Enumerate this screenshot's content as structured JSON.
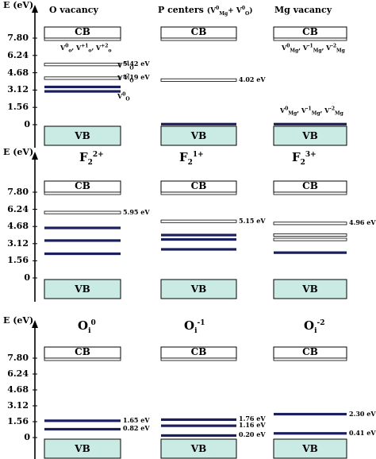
{
  "axis": {
    "ylabel": "E (eV)",
    "ticks": [
      "7.80",
      "6.24",
      "4.68",
      "3.12",
      "1.56",
      "0"
    ]
  },
  "band_labels": {
    "cb": "CB",
    "vb": "VB"
  },
  "panels": [
    {
      "columns": [
        {
          "title": {
            "base": "O vacancy"
          },
          "levels": [
            {
              "energy": 5.42,
              "style": "light",
              "label": "5.42 eV"
            },
            {
              "energy": 4.19,
              "style": "light",
              "label": "4.19 eV"
            },
            {
              "energy": 3.4,
              "style": "dark",
              "label": ""
            },
            {
              "energy": 3.0,
              "style": "dark",
              "label": ""
            }
          ],
          "notes": [
            {
              "base": "V",
              "sup": "+1",
              "sub": "O"
            },
            {
              "base": "V",
              "sup": "+2",
              "sub": "O"
            },
            {
              "base": "V",
              "sup": "0",
              "sub": "O"
            }
          ],
          "cb_species": [
            {
              "base": "V",
              "sup": "0",
              "sub": "o"
            },
            {
              "base": "V",
              "sup": "+1",
              "sub": "o"
            },
            {
              "base": "V",
              "sup": "+2",
              "sub": "o"
            }
          ]
        },
        {
          "title": {
            "base": "P centers",
            "paren": [
              {
                "base": "V",
                "sup": "0",
                "sub": "Mg"
              },
              {
                "base": "V",
                "sup": "0",
                "sub": "O"
              }
            ]
          },
          "levels": [
            {
              "energy": 4.02,
              "style": "light",
              "label": "4.02 eV"
            },
            {
              "energy": 0.05,
              "style": "dark",
              "label": ""
            }
          ]
        },
        {
          "title": {
            "base": "Mg vacancy"
          },
          "levels": [
            {
              "energy": 0.05,
              "style": "dark",
              "label": ""
            }
          ],
          "cb_species": [
            {
              "base": "V",
              "sup": "0",
              "sub": "Mg"
            },
            {
              "base": "V",
              "sup": "-1",
              "sub": "Mg"
            },
            {
              "base": "V",
              "sup": "-2",
              "sub": "Mg"
            }
          ],
          "vb_species": [
            {
              "base": "V",
              "sup": "0",
              "sub": "Mg"
            },
            {
              "base": "V",
              "sup": "-1",
              "sub": "Mg"
            },
            {
              "base": "V",
              "sup": "-2",
              "sub": "Mg"
            }
          ]
        }
      ]
    },
    {
      "columns": [
        {
          "title": {
            "base": "F",
            "sub": "2",
            "sup": "2+"
          },
          "levels": [
            {
              "energy": 5.95,
              "style": "light",
              "label": "5.95 eV"
            },
            {
              "energy": 4.55,
              "style": "dark",
              "label": ""
            },
            {
              "energy": 3.4,
              "style": "dark",
              "label": ""
            },
            {
              "energy": 2.2,
              "style": "dark",
              "label": ""
            }
          ]
        },
        {
          "title": {
            "base": "F",
            "sub": "2",
            "sup": "1+"
          },
          "levels": [
            {
              "energy": 5.15,
              "style": "light",
              "label": "5.15 eV"
            },
            {
              "energy": 3.9,
              "style": "dark",
              "label": ""
            },
            {
              "energy": 3.5,
              "style": "dark",
              "label": ""
            },
            {
              "energy": 2.6,
              "style": "dark",
              "label": ""
            }
          ]
        },
        {
          "title": {
            "base": "F",
            "sub": "2",
            "sup": "3+"
          },
          "levels": [
            {
              "energy": 4.96,
              "style": "light",
              "label": "4.96 eV"
            },
            {
              "energy": 3.9,
              "style": "light",
              "label": ""
            },
            {
              "energy": 3.5,
              "style": "light",
              "label": ""
            },
            {
              "energy": 2.3,
              "style": "dark",
              "label": ""
            }
          ]
        }
      ]
    },
    {
      "columns": [
        {
          "title": {
            "base": "O",
            "sub": "i",
            "sup": "0"
          },
          "levels": [
            {
              "energy": 1.65,
              "style": "dark",
              "label": "1.65 eV"
            },
            {
              "energy": 0.82,
              "style": "dark",
              "label": "0.82 eV"
            }
          ]
        },
        {
          "title": {
            "base": "O",
            "sub": "i",
            "sup": "-1"
          },
          "levels": [
            {
              "energy": 1.76,
              "style": "dark",
              "label": "1.76 eV"
            },
            {
              "energy": 1.16,
              "style": "dark",
              "label": "1.16 eV"
            },
            {
              "energy": 0.2,
              "style": "dark",
              "label": "0.20 eV"
            }
          ]
        },
        {
          "title": {
            "base": "O",
            "sub": "i",
            "sup": "-2"
          },
          "levels": [
            {
              "energy": 2.3,
              "style": "dark",
              "label": "2.30 eV"
            },
            {
              "energy": 0.41,
              "style": "dark",
              "label": "0.41 eV"
            }
          ]
        }
      ]
    }
  ],
  "colors": {
    "vb_fill": "#c9ebe4",
    "dark_level": "#1b1f5e",
    "light_level": "#ffffff",
    "line": "#000000"
  }
}
